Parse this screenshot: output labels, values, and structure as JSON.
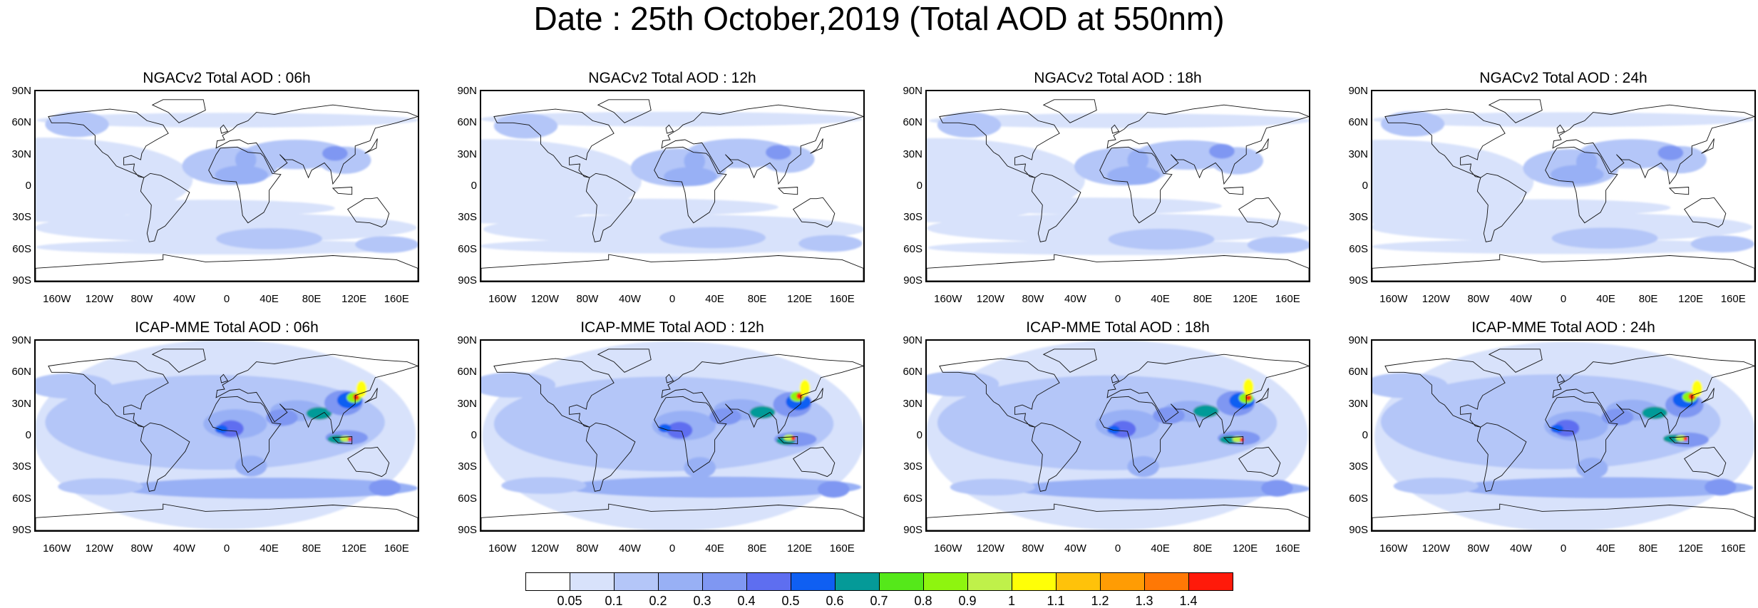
{
  "title": "Date : 25th October,2019 (Total AOD at 550nm)",
  "panels": [
    {
      "title": "NGACv2 Total AOD : 06h"
    },
    {
      "title": "NGACv2 Total AOD : 12h"
    },
    {
      "title": "NGACv2 Total AOD : 18h"
    },
    {
      "title": "NGACv2 Total AOD : 24h"
    },
    {
      "title": "ICAP-MME Total AOD : 06h"
    },
    {
      "title": "ICAP-MME Total AOD : 12h"
    },
    {
      "title": "ICAP-MME Total AOD : 18h"
    },
    {
      "title": "ICAP-MME Total AOD : 24h"
    }
  ],
  "lat_labels": [
    "90N",
    "60N",
    "30N",
    "0",
    "30S",
    "60S",
    "90S"
  ],
  "lon_labels": [
    "160W",
    "120W",
    "80W",
    "40W",
    "0",
    "40E",
    "80E",
    "120E",
    "160E"
  ],
  "colorbar": {
    "colors": [
      "#ffffff",
      "#d8e2fb",
      "#b4c6f8",
      "#98b0f5",
      "#7f97f2",
      "#5e6ef0",
      "#0f5ff2",
      "#059a98",
      "#55e81a",
      "#8ef50f",
      "#bff14a",
      "#ffff07",
      "#ffc20a",
      "#ff9c04",
      "#ff7805",
      "#ff1a0a"
    ],
    "labels": [
      "0.05",
      "0.1",
      "0.2",
      "0.3",
      "0.4",
      "0.5",
      "0.6",
      "0.7",
      "0.8",
      "0.9",
      "1",
      "1.1",
      "1.2",
      "1.3",
      "1.4"
    ]
  }
}
